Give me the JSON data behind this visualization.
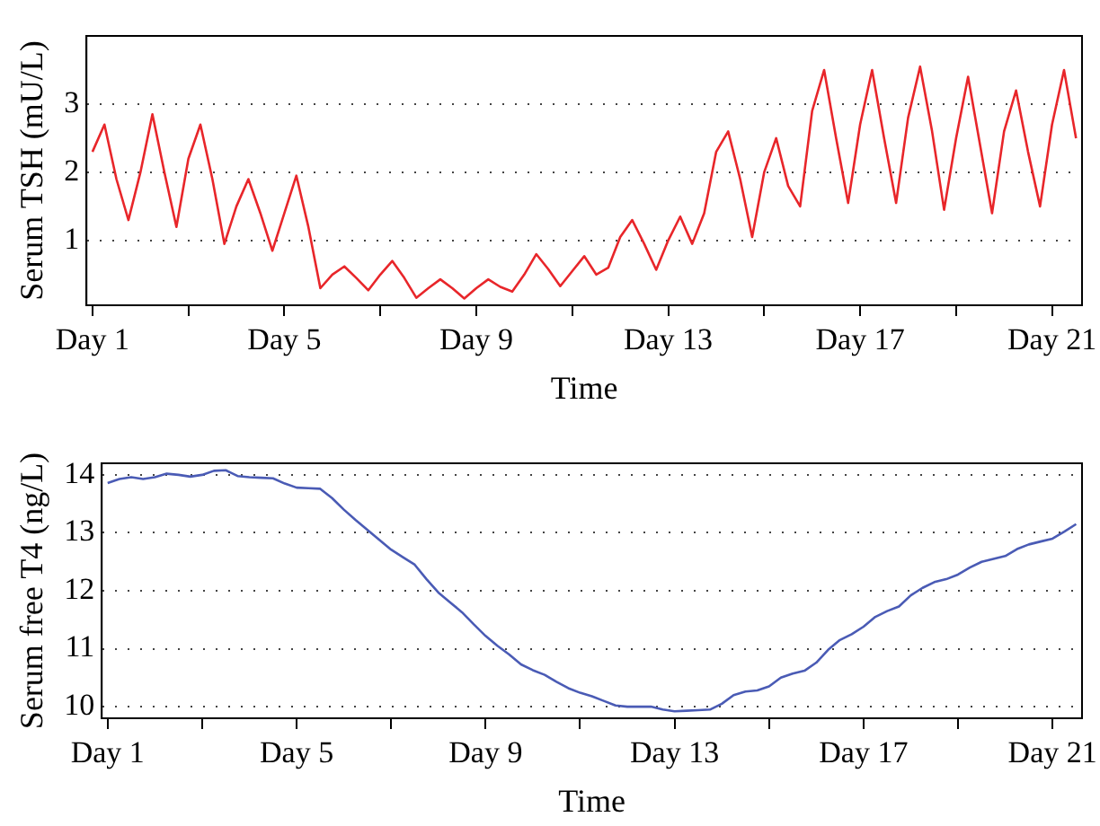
{
  "chart_data": [
    {
      "type": "line",
      "xlabel": "Time",
      "ylabel": "Serum TSH (mU/L)",
      "categories": [
        "Day 1",
        null,
        null,
        null,
        null,
        null,
        null,
        null,
        null,
        null,
        null,
        null,
        null,
        null,
        null,
        null,
        "Day 5",
        null,
        null,
        null,
        null,
        null,
        null,
        null,
        null,
        null,
        null,
        null,
        null,
        null,
        null,
        null,
        "Day 9",
        null,
        null,
        null,
        null,
        null,
        null,
        null,
        null,
        null,
        null,
        null,
        null,
        null,
        null,
        null,
        "Day 13",
        null,
        null,
        null,
        null,
        null,
        null,
        null,
        null,
        null,
        null,
        null,
        null,
        null,
        null,
        null,
        "Day 17",
        null,
        null,
        null,
        null,
        null,
        null,
        null,
        null,
        null,
        null,
        null,
        null,
        null,
        null,
        null,
        "Day 21",
        null,
        null
      ],
      "series": [
        {
          "color": "#e8262a",
          "values": [
            2.3,
            2.7,
            1.9,
            1.3,
            2.0,
            2.85,
            2.0,
            1.2,
            2.2,
            2.7,
            1.9,
            0.95,
            1.5,
            1.9,
            1.4,
            0.85,
            1.4,
            1.95,
            1.2,
            0.3,
            0.5,
            0.62,
            0.45,
            0.27,
            0.5,
            0.7,
            0.45,
            0.16,
            0.3,
            0.43,
            0.3,
            0.15,
            0.3,
            0.43,
            0.32,
            0.25,
            0.5,
            0.8,
            0.58,
            0.33,
            0.55,
            0.77,
            0.5,
            0.6,
            1.05,
            1.3,
            0.95,
            0.57,
            1.0,
            1.35,
            0.95,
            1.4,
            2.3,
            2.6,
            1.9,
            1.05,
            2.0,
            2.5,
            1.8,
            1.5,
            2.9,
            3.5,
            2.5,
            1.55,
            2.7,
            3.5,
            2.5,
            1.55,
            2.8,
            3.55,
            2.6,
            1.45,
            2.5,
            3.4,
            2.4,
            1.4,
            2.6,
            3.2,
            2.3,
            1.5,
            2.7,
            3.5,
            2.5
          ]
        }
      ],
      "ylim": [
        0.05,
        4.0
      ],
      "yticks": [
        1,
        2,
        3
      ],
      "grid": "y"
    },
    {
      "type": "line",
      "xlabel": "Time",
      "ylabel": "Serum free T4 (ng/L)",
      "categories": [
        "Day 1",
        null,
        null,
        null,
        null,
        null,
        null,
        null,
        null,
        null,
        null,
        null,
        null,
        null,
        null,
        null,
        "Day 5",
        null,
        null,
        null,
        null,
        null,
        null,
        null,
        null,
        null,
        null,
        null,
        null,
        null,
        null,
        null,
        "Day 9",
        null,
        null,
        null,
        null,
        null,
        null,
        null,
        null,
        null,
        null,
        null,
        null,
        null,
        null,
        null,
        "Day 13",
        null,
        null,
        null,
        null,
        null,
        null,
        null,
        null,
        null,
        null,
        null,
        null,
        null,
        null,
        null,
        "Day 17",
        null,
        null,
        null,
        null,
        null,
        null,
        null,
        null,
        null,
        null,
        null,
        null,
        null,
        null,
        null,
        "Day 21",
        null,
        null
      ],
      "series": [
        {
          "color": "#4a5bb5",
          "values": [
            13.86,
            13.93,
            13.96,
            13.93,
            13.96,
            14.02,
            14.0,
            13.97,
            14.0,
            14.07,
            14.08,
            13.98,
            13.96,
            13.95,
            13.94,
            13.85,
            13.78,
            13.77,
            13.76,
            13.6,
            13.4,
            13.22,
            13.05,
            12.88,
            12.71,
            12.58,
            12.45,
            12.2,
            11.97,
            11.8,
            11.63,
            11.42,
            11.22,
            11.05,
            10.9,
            10.73,
            10.63,
            10.55,
            10.43,
            10.32,
            10.24,
            10.18,
            10.1,
            10.02,
            10.0,
            10.0,
            10.0,
            9.95,
            9.92,
            9.93,
            9.94,
            9.95,
            10.05,
            10.2,
            10.26,
            10.28,
            10.35,
            10.5,
            10.57,
            10.62,
            10.76,
            10.98,
            11.15,
            11.25,
            11.38,
            11.55,
            11.65,
            11.73,
            11.92,
            12.05,
            12.15,
            12.2,
            12.28,
            12.4,
            12.5,
            12.55,
            12.6,
            12.72,
            12.8,
            12.85,
            12.9,
            13.02,
            13.15
          ]
        }
      ],
      "ylim": [
        9.8,
        14.2
      ],
      "yticks": [
        10,
        11,
        12,
        13,
        14
      ],
      "grid": "y"
    }
  ]
}
